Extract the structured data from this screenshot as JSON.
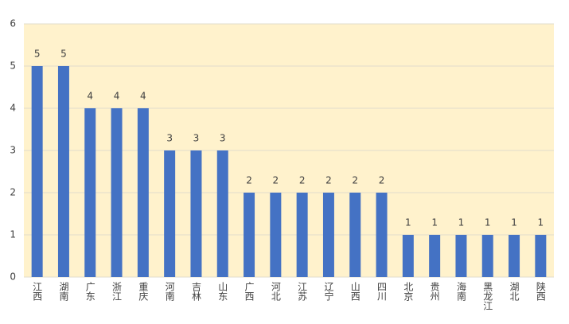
{
  "chart_data": {
    "type": "bar",
    "categories": [
      "江西",
      "湖南",
      "广东",
      "浙江",
      "重庆",
      "河南",
      "吉林",
      "山东",
      "广西",
      "河北",
      "江苏",
      "辽宁",
      "山西",
      "四川",
      "北京",
      "贵州",
      "海南",
      "黑龙江",
      "湖北",
      "陕西"
    ],
    "values": [
      5,
      5,
      4,
      4,
      4,
      3,
      3,
      3,
      2,
      2,
      2,
      2,
      2,
      2,
      1,
      1,
      1,
      1,
      1,
      1
    ],
    "color": "#4472c4",
    "background": "#fff2cc",
    "ylim": [
      0,
      6
    ],
    "yticks": [
      0,
      1,
      2,
      3,
      4,
      5,
      6
    ],
    "grid": true
  }
}
